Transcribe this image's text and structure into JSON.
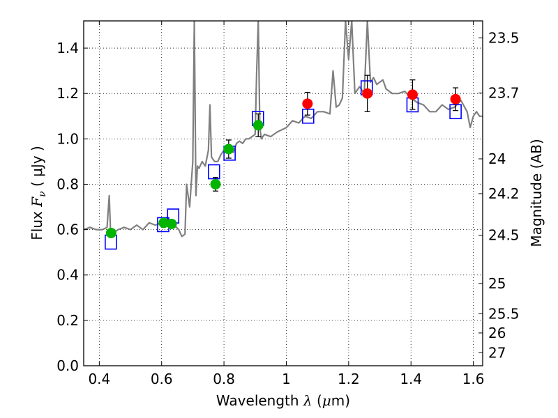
{
  "chart_data": {
    "type": "scatter",
    "xlabel": {
      "prefix": "Wavelength  ",
      "symbol": "λ",
      "unit_open": " (",
      "unit_mu": "μ",
      "unit_rest": "m)"
    },
    "ylabel": {
      "prefix": "Flux  ",
      "symbol": "F",
      "subscript": "ν",
      "unit": "  ( μJy )"
    },
    "y2label": "Magnitude (AB)",
    "xlim": [
      0.35,
      1.63
    ],
    "ylim": [
      0.0,
      1.52
    ],
    "x_ticks": [
      0.4,
      0.6,
      0.8,
      1.0,
      1.2,
      1.4,
      1.6
    ],
    "x_tick_labels": [
      "0.4",
      "0.6",
      "0.8",
      "1",
      "1.2",
      "1.4",
      "1.6"
    ],
    "y_ticks": [
      0.0,
      0.2,
      0.4,
      0.6,
      0.8,
      1.0,
      1.2,
      1.4
    ],
    "y_tick_labels": [
      "0.0",
      "0.2",
      "0.4",
      "0.6",
      "0.8",
      "1.0",
      "1.2",
      "1.4"
    ],
    "mag_ticks": [
      23.5,
      23.7,
      24,
      24.2,
      24.5,
      25,
      25.5,
      26,
      27
    ],
    "mag_tick_labels": [
      "23.5",
      "23.7",
      "24",
      "24.2",
      "24.5",
      "25",
      "25.5",
      "26",
      "27"
    ],
    "grid": true,
    "colors": {
      "spectrum": "#808080",
      "model_box": "#0000ff",
      "optical": "#00b400",
      "nir": "#ff0000",
      "errorbar": "#000000"
    },
    "spectrum": {
      "x": [
        0.35,
        0.37,
        0.39,
        0.41,
        0.425,
        0.432,
        0.436,
        0.44,
        0.46,
        0.48,
        0.5,
        0.52,
        0.54,
        0.56,
        0.58,
        0.6,
        0.62,
        0.64,
        0.655,
        0.665,
        0.675,
        0.68,
        0.69,
        0.7,
        0.705,
        0.71,
        0.715,
        0.72,
        0.73,
        0.74,
        0.75,
        0.755,
        0.76,
        0.77,
        0.78,
        0.79,
        0.8,
        0.81,
        0.82,
        0.83,
        0.84,
        0.85,
        0.86,
        0.87,
        0.88,
        0.89,
        0.9,
        0.905,
        0.91,
        0.915,
        0.92,
        0.93,
        0.95,
        0.97,
        1.0,
        1.02,
        1.04,
        1.06,
        1.08,
        1.1,
        1.12,
        1.14,
        1.15,
        1.16,
        1.17,
        1.18,
        1.19,
        1.2,
        1.21,
        1.22,
        1.235,
        1.25,
        1.26,
        1.27,
        1.28,
        1.29,
        1.3,
        1.31,
        1.32,
        1.34,
        1.36,
        1.38,
        1.4,
        1.42,
        1.44,
        1.46,
        1.48,
        1.5,
        1.52,
        1.54,
        1.56,
        1.58,
        1.59,
        1.6,
        1.61,
        1.62,
        1.63
      ],
      "y": [
        0.6,
        0.61,
        0.6,
        0.6,
        0.61,
        0.75,
        0.6,
        0.58,
        0.6,
        0.61,
        0.6,
        0.62,
        0.6,
        0.63,
        0.62,
        0.63,
        0.63,
        0.62,
        0.6,
        0.57,
        0.58,
        0.8,
        0.7,
        0.9,
        1.52,
        0.75,
        0.88,
        0.87,
        0.9,
        0.88,
        0.95,
        1.15,
        0.92,
        0.9,
        0.9,
        0.93,
        0.95,
        0.97,
        0.96,
        0.94,
        0.98,
        0.99,
        0.98,
        1.0,
        1.0,
        1.01,
        1.02,
        1.3,
        1.52,
        1.05,
        1.0,
        1.02,
        1.01,
        1.03,
        1.05,
        1.08,
        1.07,
        1.1,
        1.09,
        1.12,
        1.12,
        1.11,
        1.3,
        1.14,
        1.15,
        1.18,
        1.52,
        1.35,
        1.52,
        1.2,
        1.23,
        1.2,
        1.52,
        1.25,
        1.27,
        1.24,
        1.25,
        1.26,
        1.22,
        1.2,
        1.2,
        1.21,
        1.18,
        1.16,
        1.15,
        1.12,
        1.12,
        1.15,
        1.13,
        1.14,
        1.17,
        1.12,
        1.05,
        1.1,
        1.12,
        1.1,
        1.1
      ]
    },
    "model_boxes": [
      {
        "x": 0.437,
        "y": 0.545
      },
      {
        "x": 0.605,
        "y": 0.622
      },
      {
        "x": 0.637,
        "y": 0.66
      },
      {
        "x": 0.768,
        "y": 0.855
      },
      {
        "x": 0.818,
        "y": 0.937
      },
      {
        "x": 0.909,
        "y": 1.09
      },
      {
        "x": 1.07,
        "y": 1.1
      },
      {
        "x": 1.258,
        "y": 1.225
      },
      {
        "x": 1.405,
        "y": 1.15
      },
      {
        "x": 1.543,
        "y": 1.12
      }
    ],
    "series": [
      {
        "color": "#00b400",
        "points": [
          {
            "x": 0.438,
            "y": 0.585,
            "err": 0.015
          },
          {
            "x": 0.607,
            "y": 0.63,
            "err": 0.01
          },
          {
            "x": 0.632,
            "y": 0.625,
            "err": 0.01
          },
          {
            "x": 0.773,
            "y": 0.8,
            "err": 0.03
          },
          {
            "x": 0.815,
            "y": 0.955,
            "err": 0.04
          },
          {
            "x": 0.91,
            "y": 1.06,
            "err": 0.05
          }
        ]
      },
      {
        "color": "#ff0000",
        "points": [
          {
            "x": 1.068,
            "y": 1.155,
            "err": 0.05
          },
          {
            "x": 1.26,
            "y": 1.2,
            "err": 0.08
          },
          {
            "x": 1.405,
            "y": 1.195,
            "err": 0.065
          },
          {
            "x": 1.543,
            "y": 1.175,
            "err": 0.05
          }
        ]
      }
    ]
  }
}
